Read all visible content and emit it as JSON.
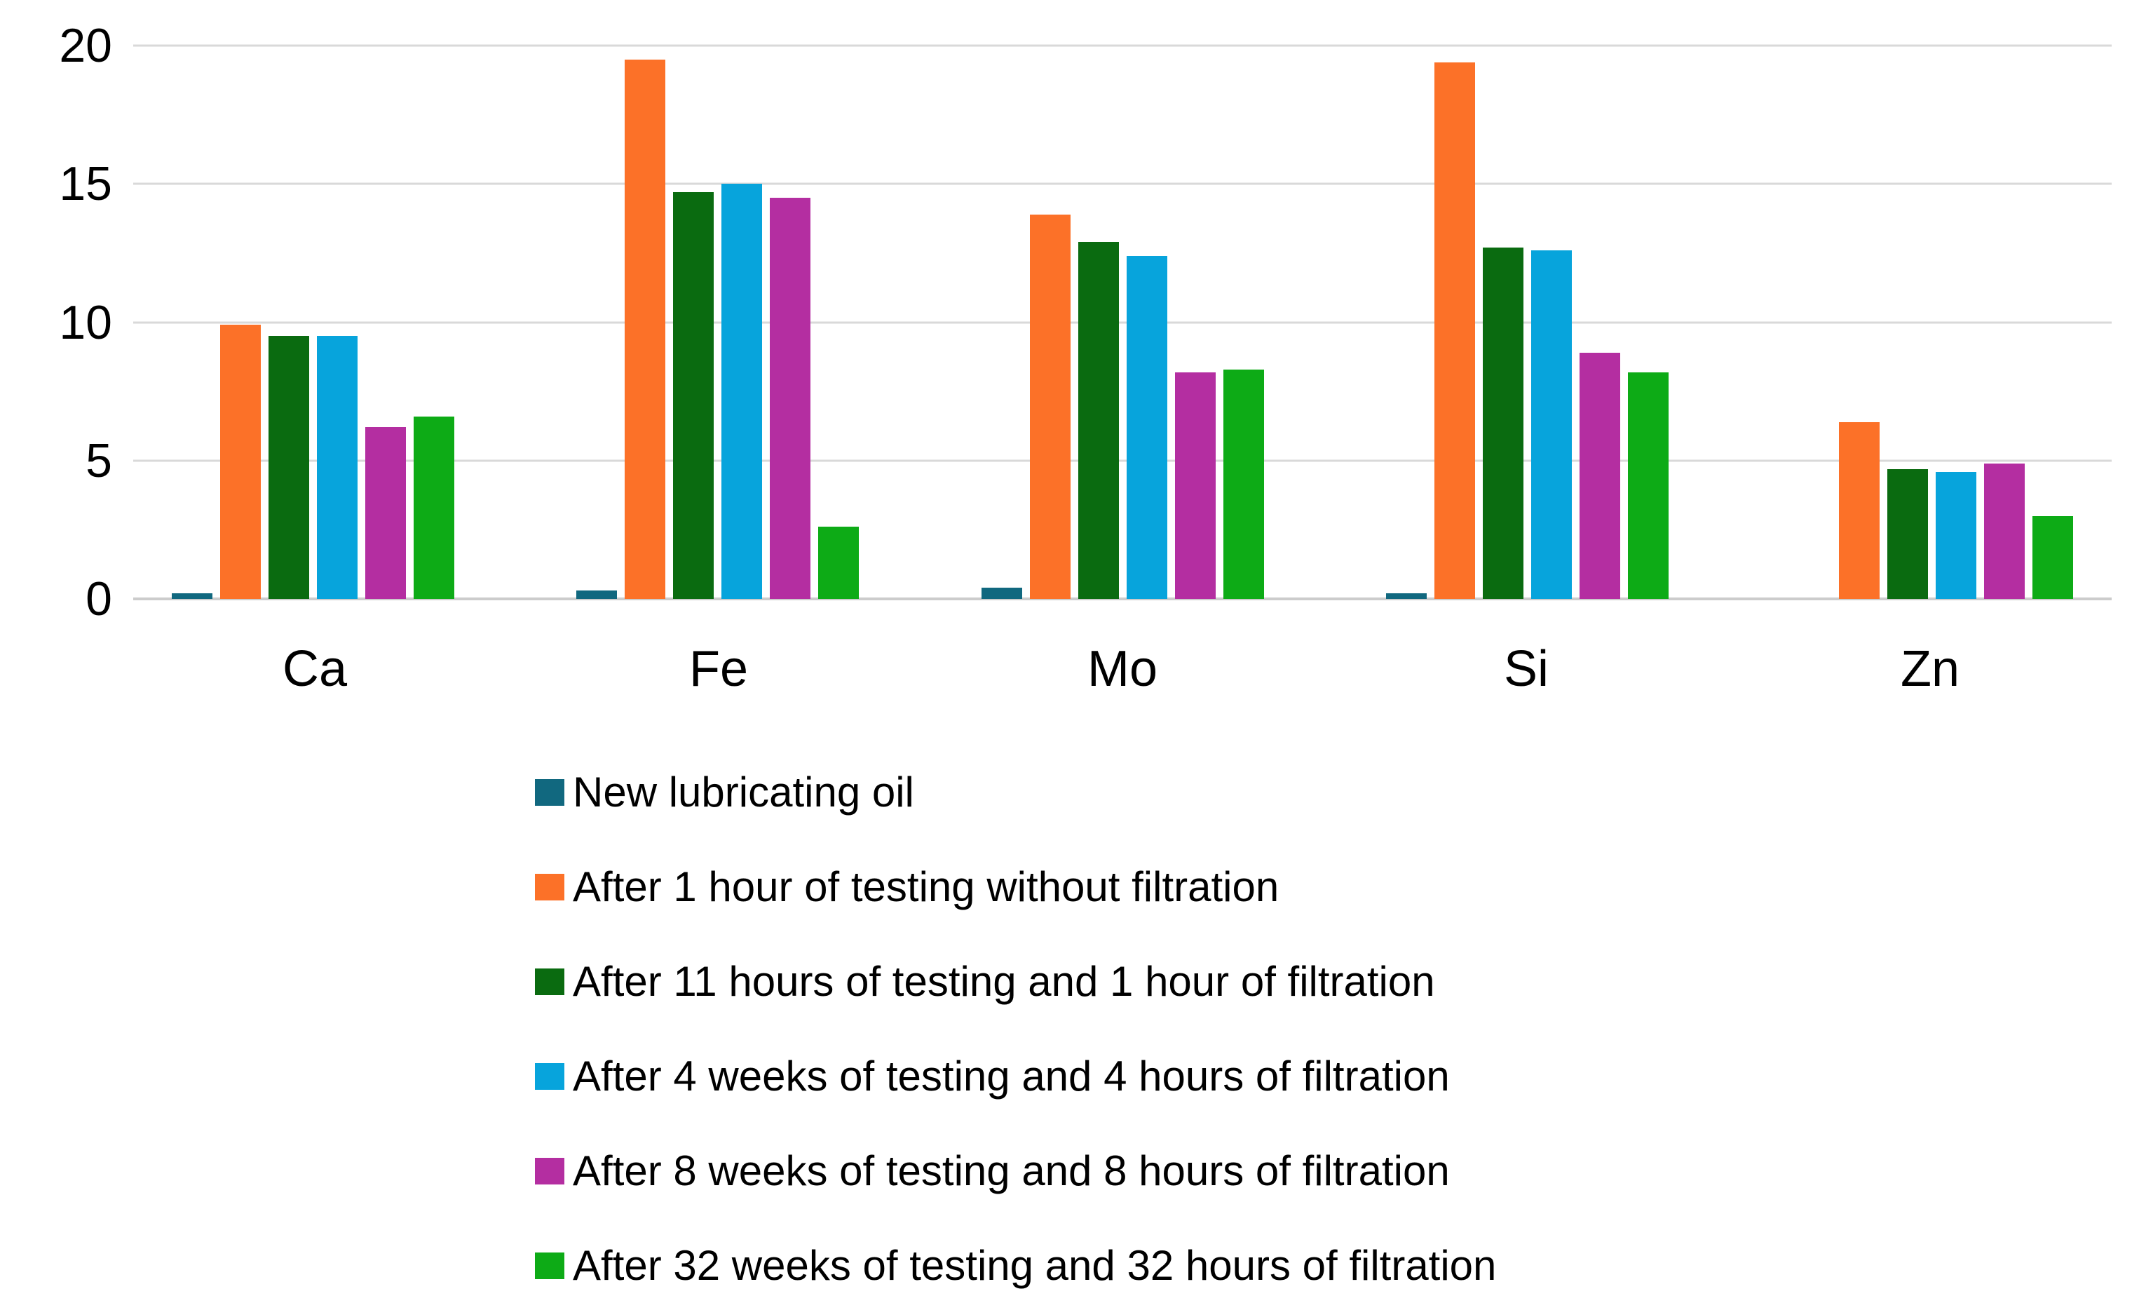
{
  "chart_data": {
    "type": "bar",
    "title": "",
    "xlabel": "",
    "ylabel": "",
    "categories": [
      "Ca",
      "Fe",
      "Mo",
      "Si",
      "Zn"
    ],
    "series": [
      {
        "name": "New lubricating oil",
        "color": "#11687F",
        "values": [
          0.2,
          0.3,
          0.4,
          0.2,
          0
        ]
      },
      {
        "name": "After 1 hour of testing without filtration",
        "color": "#FC7128",
        "values": [
          9.9,
          19.5,
          13.9,
          19.4,
          6.4
        ]
      },
      {
        "name": "After 11 hours of testing and 1 hour of filtration",
        "color": "#0A6B10",
        "values": [
          9.5,
          14.7,
          12.9,
          12.7,
          4.7
        ]
      },
      {
        "name": "After 4 weeks of testing and 4 hours of filtration",
        "color": "#07A4DC",
        "values": [
          9.5,
          15.0,
          12.4,
          12.6,
          4.6
        ]
      },
      {
        "name": "After 8 weeks of testing and 8 hours of filtration",
        "color": "#B42EA1",
        "values": [
          6.2,
          14.5,
          8.2,
          8.9,
          4.9
        ]
      },
      {
        "name": "After 32 weeks of testing and 32 hours of filtration",
        "color": "#0DAB16",
        "values": [
          6.6,
          2.6,
          8.3,
          8.2,
          3.0
        ]
      }
    ],
    "ylim": [
      0,
      20
    ],
    "yticks": [
      0,
      5,
      10,
      15,
      20
    ],
    "grid": true,
    "gridline_color": "#D9D9D9",
    "background_color": "#FFFFFF",
    "text_color": "#000000",
    "legend_position": "bottom-left"
  }
}
